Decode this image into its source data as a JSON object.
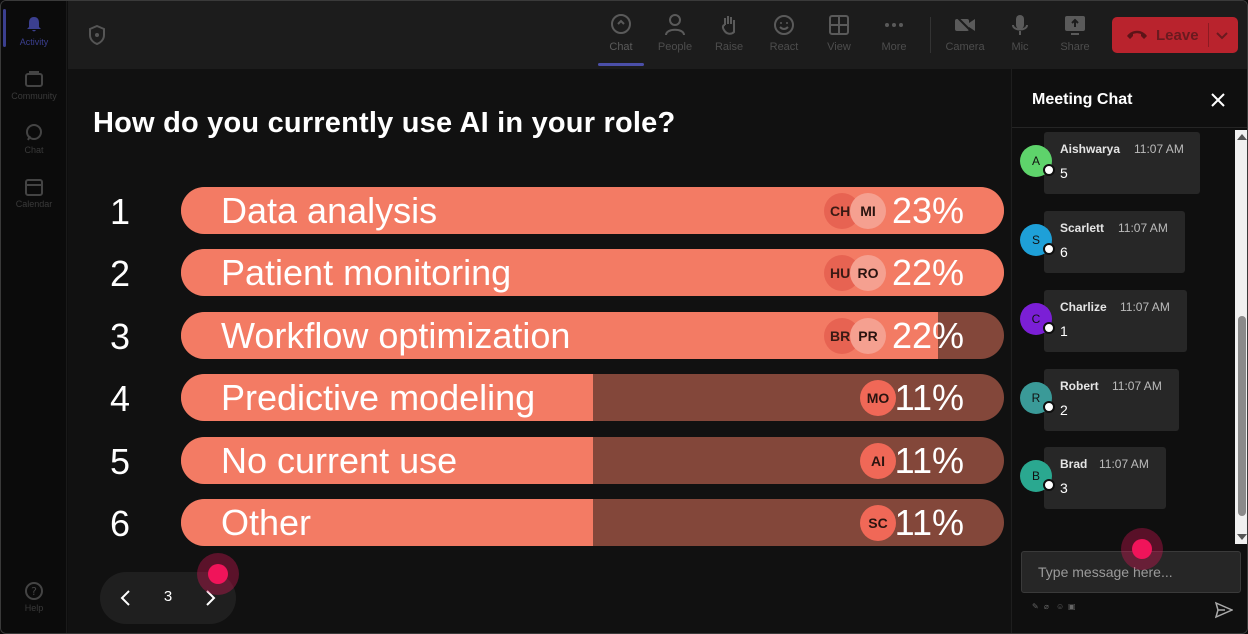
{
  "rail": {
    "items": [
      {
        "label": "Activity",
        "icon": "bell-icon",
        "active": true
      },
      {
        "label": "Community",
        "icon": "community-icon"
      },
      {
        "label": "Chat",
        "icon": "chat-icon"
      },
      {
        "label": "Calendar",
        "icon": "calendar-icon"
      }
    ],
    "help": {
      "label": "Help",
      "icon": "help-icon"
    }
  },
  "toolbar": {
    "chat": "Chat",
    "people": "People",
    "raise": "Raise",
    "react": "React",
    "view": "View",
    "more": "More",
    "camera": "Camera",
    "mic": "Mic",
    "share": "Share",
    "leave": "Leave"
  },
  "poll": {
    "question": "How do you currently use AI in your role?",
    "options": [
      {
        "num": "1",
        "label": "Data analysis",
        "pct": "23%",
        "fill": 1.0,
        "avatars": [
          "CH",
          "MI"
        ]
      },
      {
        "num": "2",
        "label": "Patient monitoring",
        "pct": "22%",
        "fill": 1.0,
        "avatars": [
          "HU",
          "RO"
        ]
      },
      {
        "num": "3",
        "label": "Workflow optimization",
        "pct": "22%",
        "fill": 0.92,
        "avatars": [
          "BR",
          "PR"
        ]
      },
      {
        "num": "4",
        "label": "Predictive modeling",
        "pct": "11%",
        "fill": 0.5,
        "avatars": [
          "MO"
        ]
      },
      {
        "num": "5",
        "label": "No current use",
        "pct": "11%",
        "fill": 0.5,
        "avatars": [
          "AI"
        ]
      },
      {
        "num": "6",
        "label": "Other",
        "pct": "11%",
        "fill": 0.5,
        "avatars": [
          "SC"
        ]
      }
    ],
    "page": "3"
  },
  "chat": {
    "title": "Meeting Chat",
    "messages": [
      {
        "initial": "A",
        "name": "Aishwarya",
        "time": "11:07 AM",
        "text": "5",
        "color": "#5ed36b"
      },
      {
        "initial": "S",
        "name": "Scarlett",
        "time": "11:07 AM",
        "text": "6",
        "color": "#1ea0d8"
      },
      {
        "initial": "C",
        "name": "Charlize",
        "time": "11:07 AM",
        "text": "1",
        "color": "#7b1fd6"
      },
      {
        "initial": "R",
        "name": "Robert",
        "time": "11:07 AM",
        "text": "2",
        "color": "#3a9a98"
      },
      {
        "initial": "B",
        "name": "Brad",
        "time": "11:07 AM",
        "text": "3",
        "color": "#2aa890"
      }
    ],
    "input_placeholder": "Type message here..."
  }
}
